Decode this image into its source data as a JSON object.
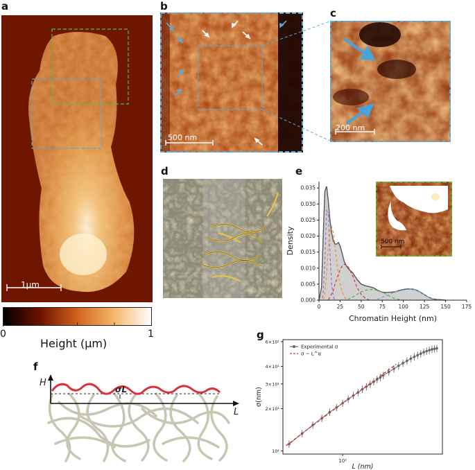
{
  "panel_labels": {
    "a": "a",
    "b": "b",
    "c": "c",
    "d": "d",
    "e": "e",
    "f": "f",
    "g": "g"
  },
  "panel_a": {
    "scale_bar": "1μm"
  },
  "panel_b": {
    "scale_bar": "500 nm"
  },
  "panel_c": {
    "scale_bar": "200 nm"
  },
  "inset_e": {
    "scale_bar": "500 nm"
  },
  "colorbar": {
    "min": "0",
    "max": "1",
    "title": "Height (μm)"
  },
  "panel_f": {
    "y_label": "H",
    "x_label": "L",
    "sigma_label": "σL"
  },
  "colors": {
    "blue_box": "#5aa9d6",
    "green_box": "#48c837",
    "arrow_blue": "#4aa3d8",
    "fit_red": "#cc3333",
    "exp_gray": "#666666"
  },
  "chart_data": [
    {
      "type": "area",
      "panel": "e",
      "xlabel": "Chromatin Height (nm)",
      "ylabel": "Density",
      "xlim": [
        0,
        175
      ],
      "ylim": [
        0,
        0.037
      ],
      "xticks": [
        "0",
        "25",
        "50",
        "75",
        "100",
        "125",
        "150",
        "175"
      ],
      "yticks": [
        "0.000",
        "0.005",
        "0.010",
        "0.015",
        "0.020",
        "0.025",
        "0.030",
        "0.035"
      ],
      "grid": false,
      "x": [
        0,
        3,
        5,
        7,
        9,
        11,
        13,
        15,
        17,
        19,
        21,
        23,
        25,
        27,
        30,
        33,
        36,
        40,
        45,
        50,
        55,
        60,
        65,
        70,
        75,
        80,
        85,
        90,
        95,
        100,
        105,
        110,
        115,
        120,
        125,
        130,
        135,
        140,
        145,
        150
      ],
      "series": [
        {
          "values": [
            0,
            0.004,
            0.02,
            0.034,
            0.0355,
            0.031,
            0.025,
            0.021,
            0.0185,
            0.0175,
            0.0175,
            0.018,
            0.017,
            0.015,
            0.012,
            0.0105,
            0.0095,
            0.0085,
            0.0065,
            0.005,
            0.0045,
            0.0042,
            0.0038,
            0.003,
            0.0025,
            0.0024,
            0.0025,
            0.0026,
            0.003,
            0.0033,
            0.0035,
            0.0035,
            0.0032,
            0.0025,
            0.0017,
            0.0009,
            0.0004,
            0.0002,
            0.0001,
            0
          ]
        },
        {
          "values": [
            0,
            0.0,
            0.002,
            0.012,
            0.028,
            0.027,
            0.015,
            0.005,
            0.001,
            0.0,
            0,
            0,
            0,
            0,
            0,
            0,
            0,
            0,
            0,
            0,
            0,
            0,
            0,
            0,
            0,
            0,
            0,
            0,
            0,
            0,
            0,
            0,
            0,
            0,
            0,
            0,
            0,
            0,
            0,
            0
          ]
        },
        {
          "values": [
            0,
            0,
            0,
            0.002,
            0.008,
            0.016,
            0.021,
            0.023,
            0.021,
            0.017,
            0.012,
            0.008,
            0.005,
            0.003,
            0.001,
            0,
            0,
            0,
            0,
            0,
            0,
            0,
            0,
            0,
            0,
            0,
            0,
            0,
            0,
            0,
            0,
            0,
            0,
            0,
            0,
            0,
            0,
            0,
            0,
            0
          ]
        },
        {
          "values": [
            0,
            0,
            0,
            0,
            0,
            0,
            0.001,
            0.002,
            0.003,
            0.005,
            0.0065,
            0.008,
            0.0095,
            0.0105,
            0.0112,
            0.011,
            0.0098,
            0.0075,
            0.004,
            0.0018,
            0.0006,
            0,
            0,
            0,
            0,
            0,
            0,
            0,
            0,
            0,
            0,
            0,
            0,
            0,
            0,
            0,
            0,
            0,
            0,
            0
          ]
        },
        {
          "values": [
            0,
            0,
            0,
            0,
            0,
            0,
            0,
            0,
            0,
            0,
            0,
            0,
            0,
            0,
            0,
            0,
            0.0005,
            0.001,
            0.0018,
            0.0026,
            0.0031,
            0.0033,
            0.0033,
            0.003,
            0.0025,
            0.0018,
            0.001,
            0.0005,
            0.0002,
            0,
            0,
            0,
            0,
            0,
            0,
            0,
            0,
            0,
            0,
            0
          ]
        },
        {
          "values": [
            0,
            0,
            0,
            0,
            0,
            0,
            0,
            0,
            0,
            0,
            0,
            0,
            0,
            0,
            0,
            0,
            0,
            0,
            0,
            0,
            0,
            0,
            0,
            0.0004,
            0.0009,
            0.0014,
            0.002,
            0.0026,
            0.0031,
            0.0035,
            0.0036,
            0.0036,
            0.0032,
            0.0025,
            0.0017,
            0.0009,
            0.0004,
            0.0001,
            0,
            0
          ]
        }
      ]
    },
    {
      "type": "scatter",
      "panel": "g",
      "xlabel": "L (nm)",
      "ylabel": "σ(nm)",
      "xscale": "log",
      "yscale": "log",
      "xlim": [
        36,
        550
      ],
      "ylim": [
        9.5,
        62
      ],
      "xticks": [
        "10²"
      ],
      "yticks": [
        "10¹",
        "2×10¹",
        "3×10¹",
        "4×10¹",
        "6×10¹"
      ],
      "legend": [
        "Experimental σ",
        "σ ~ L^α"
      ],
      "legend_position": "top-left",
      "series": [
        {
          "name": "Experimental σ",
          "x": [
            40,
            50,
            60,
            70,
            80,
            90,
            100,
            110,
            120,
            130,
            140,
            150,
            160,
            170,
            180,
            190,
            200,
            220,
            240,
            260,
            280,
            300,
            320,
            340,
            360,
            380,
            400,
            420,
            440,
            460,
            480,
            500
          ],
          "y": [
            11.2,
            13.3,
            15.3,
            17.1,
            18.9,
            20.4,
            21.9,
            23.4,
            24.8,
            26.1,
            27.5,
            28.7,
            29.9,
            31.1,
            32.3,
            33.3,
            34.5,
            36.5,
            38.5,
            40.4,
            42.2,
            43.8,
            45.4,
            46.8,
            48.1,
            49.3,
            50.5,
            51.4,
            52.2,
            52.9,
            53.4,
            53.8
          ]
        },
        {
          "name": "σ ~ L^α",
          "x": [
            38,
            60,
            100,
            160,
            250
          ],
          "y": [
            10.9,
            15.2,
            21.9,
            30.2,
            41.5
          ]
        }
      ]
    }
  ]
}
